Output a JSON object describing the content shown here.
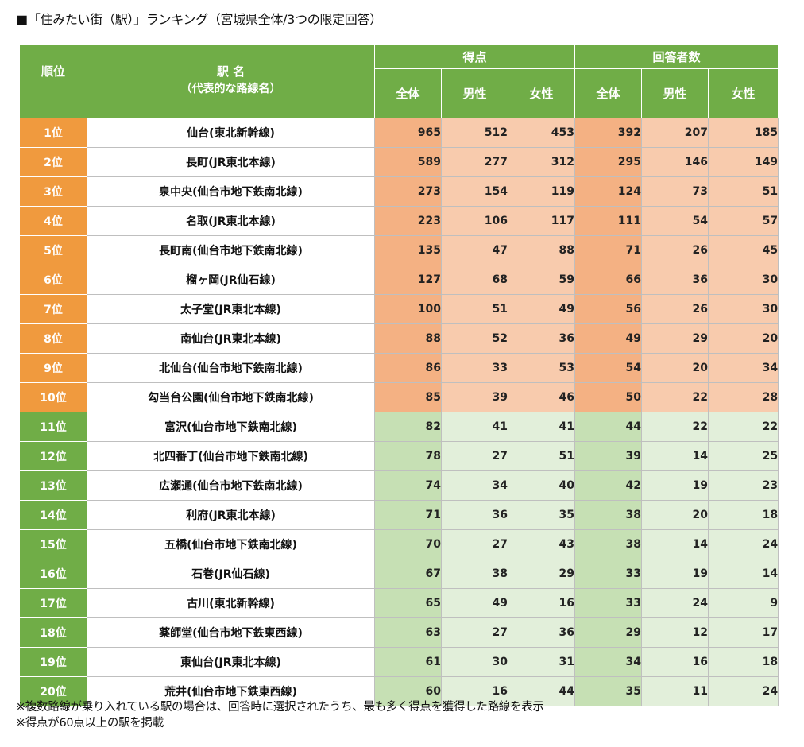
{
  "title": "■「住みたい街（駅）」ランキング（宮城県全体/3つの限定回答）",
  "colors": {
    "header_green": "#70ad47",
    "rank_orange": "#f09a3e",
    "cell_orange": "#f8cbad",
    "cell_green": "#e2efda"
  },
  "headers": {
    "rank": "順位",
    "name_line1": "駅 名",
    "name_line2": "（代表的な路線名）",
    "score_group": "得点",
    "respondents_group": "回答者数",
    "total": "全体",
    "male": "男性",
    "female": "女性"
  },
  "rows": [
    {
      "rank": "1位",
      "name": "仙台(東北新幹線)",
      "s_total": "965",
      "s_male": "512",
      "s_female": "453",
      "r_total": "392",
      "r_male": "207",
      "r_female": "185"
    },
    {
      "rank": "2位",
      "name": "長町(JR東北本線)",
      "s_total": "589",
      "s_male": "277",
      "s_female": "312",
      "r_total": "295",
      "r_male": "146",
      "r_female": "149"
    },
    {
      "rank": "3位",
      "name": "泉中央(仙台市地下鉄南北線)",
      "s_total": "273",
      "s_male": "154",
      "s_female": "119",
      "r_total": "124",
      "r_male": "73",
      "r_female": "51"
    },
    {
      "rank": "4位",
      "name": "名取(JR東北本線)",
      "s_total": "223",
      "s_male": "106",
      "s_female": "117",
      "r_total": "111",
      "r_male": "54",
      "r_female": "57"
    },
    {
      "rank": "5位",
      "name": "長町南(仙台市地下鉄南北線)",
      "s_total": "135",
      "s_male": "47",
      "s_female": "88",
      "r_total": "71",
      "r_male": "26",
      "r_female": "45"
    },
    {
      "rank": "6位",
      "name": "榴ヶ岡(JR仙石線)",
      "s_total": "127",
      "s_male": "68",
      "s_female": "59",
      "r_total": "66",
      "r_male": "36",
      "r_female": "30"
    },
    {
      "rank": "7位",
      "name": "太子堂(JR東北本線)",
      "s_total": "100",
      "s_male": "51",
      "s_female": "49",
      "r_total": "56",
      "r_male": "26",
      "r_female": "30"
    },
    {
      "rank": "8位",
      "name": "南仙台(JR東北本線)",
      "s_total": "88",
      "s_male": "52",
      "s_female": "36",
      "r_total": "49",
      "r_male": "29",
      "r_female": "20"
    },
    {
      "rank": "9位",
      "name": "北仙台(仙台市地下鉄南北線)",
      "s_total": "86",
      "s_male": "33",
      "s_female": "53",
      "r_total": "54",
      "r_male": "20",
      "r_female": "34"
    },
    {
      "rank": "10位",
      "name": "勾当台公園(仙台市地下鉄南北線)",
      "s_total": "85",
      "s_male": "39",
      "s_female": "46",
      "r_total": "50",
      "r_male": "22",
      "r_female": "28"
    },
    {
      "rank": "11位",
      "name": "富沢(仙台市地下鉄南北線)",
      "s_total": "82",
      "s_male": "41",
      "s_female": "41",
      "r_total": "44",
      "r_male": "22",
      "r_female": "22"
    },
    {
      "rank": "12位",
      "name": "北四番丁(仙台市地下鉄南北線)",
      "s_total": "78",
      "s_male": "27",
      "s_female": "51",
      "r_total": "39",
      "r_male": "14",
      "r_female": "25"
    },
    {
      "rank": "13位",
      "name": "広瀬通(仙台市地下鉄南北線)",
      "s_total": "74",
      "s_male": "34",
      "s_female": "40",
      "r_total": "42",
      "r_male": "19",
      "r_female": "23"
    },
    {
      "rank": "14位",
      "name": "利府(JR東北本線)",
      "s_total": "71",
      "s_male": "36",
      "s_female": "35",
      "r_total": "38",
      "r_male": "20",
      "r_female": "18"
    },
    {
      "rank": "15位",
      "name": "五橋(仙台市地下鉄南北線)",
      "s_total": "70",
      "s_male": "27",
      "s_female": "43",
      "r_total": "38",
      "r_male": "14",
      "r_female": "24"
    },
    {
      "rank": "16位",
      "name": "石巻(JR仙石線)",
      "s_total": "67",
      "s_male": "38",
      "s_female": "29",
      "r_total": "33",
      "r_male": "19",
      "r_female": "14"
    },
    {
      "rank": "17位",
      "name": "古川(東北新幹線)",
      "s_total": "65",
      "s_male": "49",
      "s_female": "16",
      "r_total": "33",
      "r_male": "24",
      "r_female": "9"
    },
    {
      "rank": "18位",
      "name": "薬師堂(仙台市地下鉄東西線)",
      "s_total": "63",
      "s_male": "27",
      "s_female": "36",
      "r_total": "29",
      "r_male": "12",
      "r_female": "17"
    },
    {
      "rank": "19位",
      "name": "東仙台(JR東北本線)",
      "s_total": "61",
      "s_male": "30",
      "s_female": "31",
      "r_total": "34",
      "r_male": "16",
      "r_female": "18"
    },
    {
      "rank": "20位",
      "name": "荒井(仙台市地下鉄東西線)",
      "s_total": "60",
      "s_male": "16",
      "s_female": "44",
      "r_total": "35",
      "r_male": "11",
      "r_female": "24"
    }
  ],
  "notes": [
    "※複数路線が乗り入れている駅の場合は、回答時に選択されたうち、最も多く得点を獲得した路線を表示",
    "※得点が60点以上の駅を掲載"
  ]
}
